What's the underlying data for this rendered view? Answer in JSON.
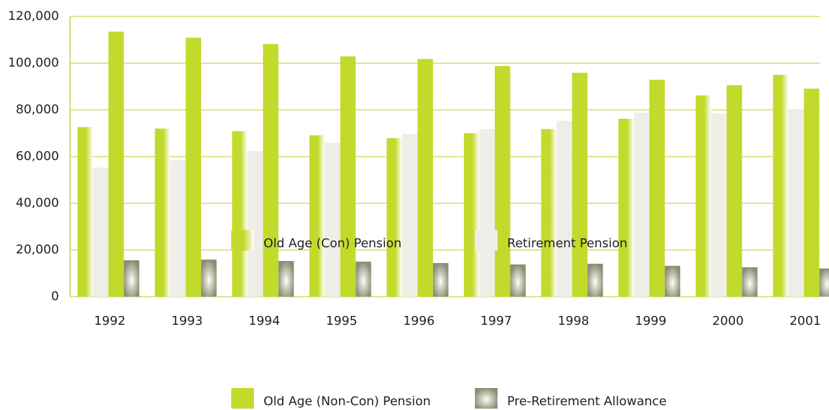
{
  "chart_data": {
    "type": "bar",
    "categories": [
      "1992",
      "1993",
      "1994",
      "1995",
      "1996",
      "1997",
      "1998",
      "1999",
      "2000",
      "2001"
    ],
    "series": [
      {
        "name": "Old Age (Con) Pension",
        "color": "#c3da2c",
        "values": [
          72600,
          72000,
          70900,
          69100,
          67900,
          70000,
          71800,
          76200,
          86200,
          95000
        ]
      },
      {
        "name": "Retirement Pension",
        "color": "#eeeee8",
        "values": [
          55300,
          58500,
          62400,
          65900,
          69700,
          71800,
          75300,
          78800,
          78500,
          80300
        ]
      },
      {
        "name": "Old Age (Non-Con) Pension",
        "color": "#c3da2c",
        "values": [
          113500,
          110900,
          108200,
          102900,
          101800,
          98800,
          95900,
          92900,
          90600,
          89100
        ]
      },
      {
        "name": "Pre-Retirement Allowance",
        "color": "#8a8f74",
        "values": [
          15600,
          15900,
          15300,
          15000,
          14400,
          13800,
          14100,
          13200,
          12600,
          12100
        ]
      }
    ],
    "ylim": [
      0,
      120000
    ],
    "yticks": [
      0,
      {
        "value": 20000,
        "label": "20,000"
      },
      {
        "value": 40000,
        "label": "40,000"
      },
      {
        "value": 60000,
        "label": "60,000"
      },
      {
        "value": 80000,
        "label": "80,000"
      },
      {
        "value": 100000,
        "label": "100,000"
      },
      {
        "value": 120000,
        "label": "120,000"
      }
    ],
    "grid": true
  }
}
